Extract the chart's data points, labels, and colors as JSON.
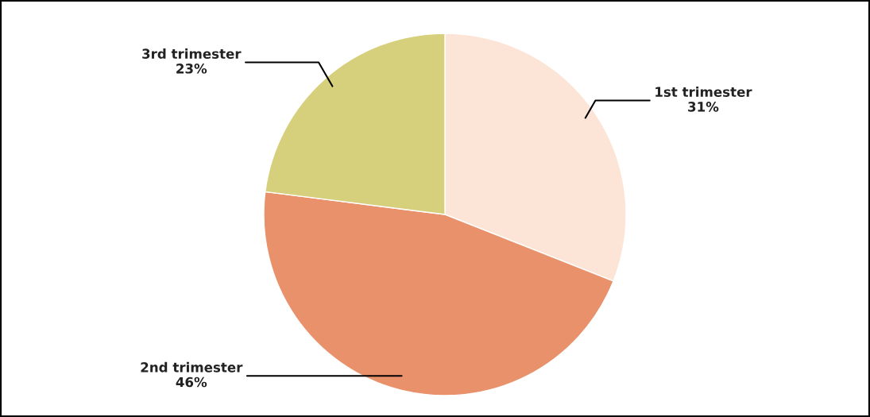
{
  "chart_data": {
    "type": "pie",
    "categories": [
      "1st trimester",
      "2nd trimester",
      "3rd trimester"
    ],
    "values": [
      31,
      46,
      23
    ],
    "colors": [
      "#fce4d6",
      "#e9916a",
      "#d6cf7c"
    ],
    "value_labels": [
      "31%",
      "46%",
      "23%"
    ]
  }
}
